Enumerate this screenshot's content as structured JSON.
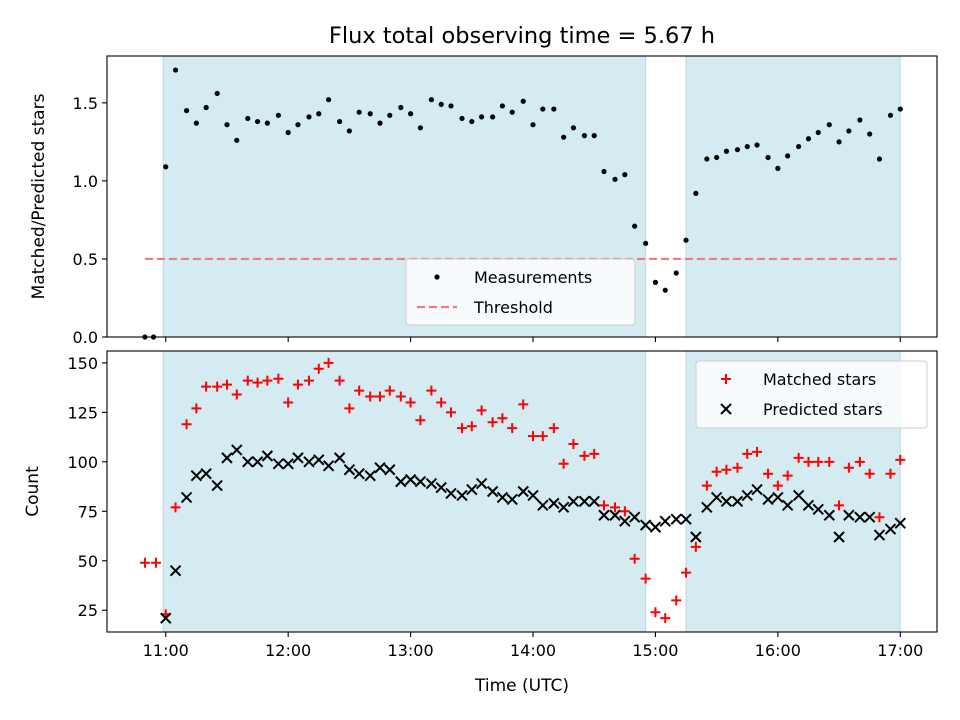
{
  "title": "Flux total observing time = 5.67 h",
  "x_label": "Time (UTC)",
  "x_ticks": [
    {
      "v": 11,
      "label": "11:00"
    },
    {
      "v": 12,
      "label": "12:00"
    },
    {
      "v": 13,
      "label": "13:00"
    },
    {
      "v": 14,
      "label": "14:00"
    },
    {
      "v": 15,
      "label": "15:00"
    },
    {
      "v": 16,
      "label": "16:00"
    },
    {
      "v": 17,
      "label": "17:00"
    }
  ],
  "colors": {
    "shade": "#add8e6",
    "threshold": "#f07a7a",
    "matched": "#ff0000",
    "predicted": "#000000",
    "measure": "#000000"
  },
  "chart_data": [
    {
      "type": "scatter",
      "ylabel": "Matched/Predicted stars",
      "xlim": [
        10.52,
        17.3
      ],
      "ylim": [
        0,
        1.8
      ],
      "y_ticks": [
        "0.0",
        "0.5",
        "1.0",
        "1.5"
      ],
      "legend_position": "lower-center",
      "shaded_intervals": [
        [
          10.98,
          14.92
        ],
        [
          15.25,
          17.0
        ]
      ],
      "threshold": {
        "name": "Threshold",
        "y": 0.5,
        "x_range": [
          10.83,
          17.0
        ]
      },
      "series": [
        {
          "name": "Measurements",
          "points": [
            [
              10.83,
              0.0
            ],
            [
              10.9,
              0.0
            ],
            [
              11.0,
              1.09
            ],
            [
              11.08,
              1.71
            ],
            [
              11.17,
              1.45
            ],
            [
              11.25,
              1.37
            ],
            [
              11.33,
              1.47
            ],
            [
              11.42,
              1.56
            ],
            [
              11.5,
              1.36
            ],
            [
              11.58,
              1.26
            ],
            [
              11.67,
              1.4
            ],
            [
              11.75,
              1.38
            ],
            [
              11.83,
              1.37
            ],
            [
              11.92,
              1.42
            ],
            [
              12.0,
              1.31
            ],
            [
              12.08,
              1.36
            ],
            [
              12.17,
              1.41
            ],
            [
              12.25,
              1.43
            ],
            [
              12.33,
              1.52
            ],
            [
              12.42,
              1.38
            ],
            [
              12.5,
              1.32
            ],
            [
              12.58,
              1.44
            ],
            [
              12.67,
              1.43
            ],
            [
              12.75,
              1.37
            ],
            [
              12.83,
              1.42
            ],
            [
              12.92,
              1.47
            ],
            [
              13.0,
              1.43
            ],
            [
              13.08,
              1.34
            ],
            [
              13.17,
              1.52
            ],
            [
              13.25,
              1.49
            ],
            [
              13.33,
              1.48
            ],
            [
              13.42,
              1.4
            ],
            [
              13.5,
              1.38
            ],
            [
              13.58,
              1.41
            ],
            [
              13.67,
              1.41
            ],
            [
              13.75,
              1.48
            ],
            [
              13.83,
              1.44
            ],
            [
              13.92,
              1.51
            ],
            [
              14.0,
              1.36
            ],
            [
              14.08,
              1.46
            ],
            [
              14.17,
              1.46
            ],
            [
              14.25,
              1.28
            ],
            [
              14.33,
              1.34
            ],
            [
              14.42,
              1.29
            ],
            [
              14.5,
              1.29
            ],
            [
              14.58,
              1.06
            ],
            [
              14.67,
              1.01
            ],
            [
              14.75,
              1.04
            ],
            [
              14.83,
              0.71
            ],
            [
              14.92,
              0.6
            ],
            [
              15.0,
              0.35
            ],
            [
              15.08,
              0.3
            ],
            [
              15.17,
              0.41
            ],
            [
              15.25,
              0.62
            ],
            [
              15.33,
              0.92
            ],
            [
              15.42,
              1.14
            ],
            [
              15.5,
              1.15
            ],
            [
              15.58,
              1.19
            ],
            [
              15.67,
              1.2
            ],
            [
              15.75,
              1.22
            ],
            [
              15.83,
              1.23
            ],
            [
              15.92,
              1.15
            ],
            [
              16.0,
              1.08
            ],
            [
              16.08,
              1.16
            ],
            [
              16.17,
              1.22
            ],
            [
              16.25,
              1.27
            ],
            [
              16.33,
              1.31
            ],
            [
              16.42,
              1.36
            ],
            [
              16.5,
              1.25
            ],
            [
              16.58,
              1.32
            ],
            [
              16.67,
              1.39
            ],
            [
              16.75,
              1.3
            ],
            [
              16.83,
              1.14
            ],
            [
              16.92,
              1.42
            ],
            [
              17.0,
              1.46
            ]
          ]
        }
      ]
    },
    {
      "type": "scatter",
      "ylabel": "Count",
      "xlabel": "Time (UTC)",
      "xlim": [
        10.52,
        17.3
      ],
      "ylim": [
        14,
        156
      ],
      "y_ticks": [
        "25",
        "50",
        "75",
        "100",
        "125",
        "150"
      ],
      "legend_position": "top-right",
      "shaded_intervals": [
        [
          10.98,
          14.92
        ],
        [
          15.25,
          17.0
        ]
      ],
      "series": [
        {
          "name": "Matched stars",
          "marker": "plus",
          "points": [
            [
              10.83,
              49
            ],
            [
              10.92,
              49
            ],
            [
              11.0,
              23
            ],
            [
              11.08,
              77
            ],
            [
              11.17,
              119
            ],
            [
              11.25,
              127
            ],
            [
              11.33,
              138
            ],
            [
              11.42,
              138
            ],
            [
              11.5,
              139
            ],
            [
              11.58,
              134
            ],
            [
              11.67,
              141
            ],
            [
              11.75,
              140
            ],
            [
              11.83,
              141
            ],
            [
              11.92,
              142
            ],
            [
              12.0,
              130
            ],
            [
              12.08,
              139
            ],
            [
              12.17,
              141
            ],
            [
              12.25,
              147
            ],
            [
              12.33,
              150
            ],
            [
              12.42,
              141
            ],
            [
              12.5,
              127
            ],
            [
              12.58,
              136
            ],
            [
              12.67,
              133
            ],
            [
              12.75,
              133
            ],
            [
              12.83,
              136
            ],
            [
              12.92,
              133
            ],
            [
              13.0,
              130
            ],
            [
              13.08,
              121
            ],
            [
              13.17,
              136
            ],
            [
              13.25,
              130
            ],
            [
              13.33,
              125
            ],
            [
              13.42,
              117
            ],
            [
              13.5,
              118
            ],
            [
              13.58,
              126
            ],
            [
              13.67,
              120
            ],
            [
              13.75,
              122
            ],
            [
              13.83,
              117
            ],
            [
              13.92,
              129
            ],
            [
              14.0,
              113
            ],
            [
              14.08,
              113
            ],
            [
              14.17,
              117
            ],
            [
              14.25,
              99
            ],
            [
              14.33,
              109
            ],
            [
              14.42,
              103
            ],
            [
              14.5,
              104
            ],
            [
              14.58,
              78
            ],
            [
              14.67,
              77
            ],
            [
              14.75,
              75
            ],
            [
              14.83,
              51
            ],
            [
              14.92,
              41
            ],
            [
              15.0,
              24
            ],
            [
              15.08,
              21
            ],
            [
              15.17,
              30
            ],
            [
              15.25,
              44
            ],
            [
              15.33,
              57
            ],
            [
              15.42,
              88
            ],
            [
              15.5,
              95
            ],
            [
              15.58,
              96
            ],
            [
              15.67,
              97
            ],
            [
              15.75,
              104
            ],
            [
              15.83,
              105
            ],
            [
              15.92,
              94
            ],
            [
              16.0,
              88
            ],
            [
              16.08,
              93
            ],
            [
              16.17,
              102
            ],
            [
              16.25,
              100
            ],
            [
              16.33,
              100
            ],
            [
              16.42,
              100
            ],
            [
              16.5,
              78
            ],
            [
              16.58,
              97
            ],
            [
              16.67,
              100
            ],
            [
              16.75,
              94
            ],
            [
              16.83,
              72
            ],
            [
              16.92,
              94
            ],
            [
              17.0,
              101
            ]
          ]
        },
        {
          "name": "Predicted stars",
          "marker": "x",
          "points": [
            [
              11.0,
              21
            ],
            [
              11.08,
              45
            ],
            [
              11.17,
              82
            ],
            [
              11.25,
              93
            ],
            [
              11.33,
              94
            ],
            [
              11.42,
              88
            ],
            [
              11.5,
              102
            ],
            [
              11.58,
              106
            ],
            [
              11.67,
              100
            ],
            [
              11.75,
              100
            ],
            [
              11.83,
              103
            ],
            [
              11.92,
              99
            ],
            [
              12.0,
              99
            ],
            [
              12.08,
              102
            ],
            [
              12.17,
              100
            ],
            [
              12.25,
              101
            ],
            [
              12.33,
              98
            ],
            [
              12.42,
              102
            ],
            [
              12.5,
              96
            ],
            [
              12.58,
              94
            ],
            [
              12.67,
              93
            ],
            [
              12.75,
              97
            ],
            [
              12.83,
              96
            ],
            [
              12.92,
              90
            ],
            [
              13.0,
              91
            ],
            [
              13.08,
              90
            ],
            [
              13.17,
              89
            ],
            [
              13.25,
              87
            ],
            [
              13.33,
              84
            ],
            [
              13.42,
              83
            ],
            [
              13.5,
              86
            ],
            [
              13.58,
              89
            ],
            [
              13.67,
              85
            ],
            [
              13.75,
              82
            ],
            [
              13.83,
              81
            ],
            [
              13.92,
              85
            ],
            [
              14.0,
              83
            ],
            [
              14.08,
              78
            ],
            [
              14.17,
              79
            ],
            [
              14.25,
              77
            ],
            [
              14.33,
              80
            ],
            [
              14.42,
              80
            ],
            [
              14.5,
              80
            ],
            [
              14.58,
              73
            ],
            [
              14.67,
              73
            ],
            [
              14.75,
              70
            ],
            [
              14.83,
              72
            ],
            [
              14.92,
              68
            ],
            [
              15.0,
              67
            ],
            [
              15.08,
              70
            ],
            [
              15.17,
              71
            ],
            [
              15.25,
              71
            ],
            [
              15.33,
              62
            ],
            [
              15.42,
              77
            ],
            [
              15.5,
              82
            ],
            [
              15.58,
              80
            ],
            [
              15.67,
              80
            ],
            [
              15.75,
              83
            ],
            [
              15.83,
              86
            ],
            [
              15.92,
              81
            ],
            [
              16.0,
              82
            ],
            [
              16.08,
              78
            ],
            [
              16.17,
              83
            ],
            [
              16.25,
              78
            ],
            [
              16.33,
              76
            ],
            [
              16.42,
              73
            ],
            [
              16.5,
              62
            ],
            [
              16.58,
              73
            ],
            [
              16.67,
              72
            ],
            [
              16.75,
              72
            ],
            [
              16.83,
              63
            ],
            [
              16.92,
              66
            ],
            [
              17.0,
              69
            ]
          ]
        }
      ]
    }
  ]
}
